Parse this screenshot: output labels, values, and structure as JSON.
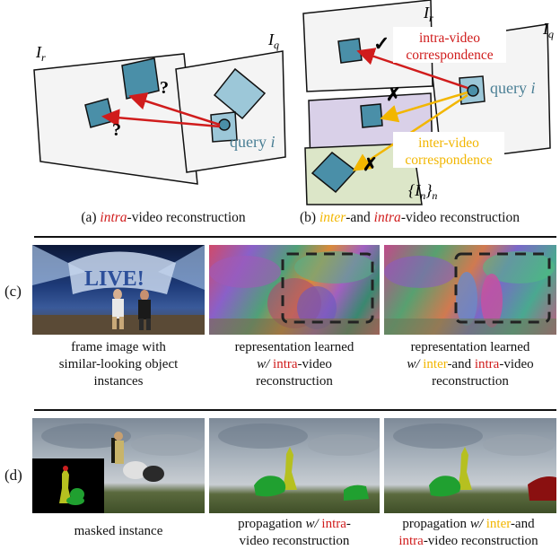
{
  "panel_a": {
    "label_ir": "I",
    "label_ir_sub": "r",
    "label_iq": "I",
    "label_iq_sub": "q",
    "question_mark_1": "?",
    "question_mark_2": "?",
    "query_text": "query ",
    "query_var": "i",
    "caption_prefix": "(a) ",
    "caption_intra": "intra",
    "caption_suffix": "-video reconstruction"
  },
  "panel_b": {
    "label_ir": "I",
    "label_ir_sub": "r",
    "label_iq": "I",
    "label_iq_sub": "q",
    "label_in": "{I",
    "label_in_sub": "n",
    "label_in_end": "}",
    "label_in_end_sub": "n",
    "check_mark": "✓",
    "cross_mark_1": "✗",
    "cross_mark_2": "✗",
    "intra_corr_line1": "intra-video",
    "intra_corr_line2": "correspondence",
    "inter_corr_line1": "inter-video",
    "inter_corr_line2": "correspondence",
    "query_text": "query ",
    "query_var": "i",
    "caption_prefix": "(b) ",
    "caption_inter": "inter",
    "caption_mid": "-and ",
    "caption_intra": "intra",
    "caption_suffix": "-video reconstruction"
  },
  "row_c": {
    "label": "(c)",
    "live_sign": "LIVE!",
    "cap1_line1": "frame image with",
    "cap1_line2": "similar-looking object",
    "cap1_line3": "instances",
    "cap2_line1": "representation learned",
    "cap2_w": "w/ ",
    "cap2_intra": "intra",
    "cap2_line2_end": "-video",
    "cap2_line3": "reconstruction",
    "cap3_line1": "representation learned",
    "cap3_w": "w/ ",
    "cap3_inter": "inter",
    "cap3_mid": "-and ",
    "cap3_intra": "intra",
    "cap3_line2_end": "-video",
    "cap3_line3": "reconstruction"
  },
  "row_d": {
    "label": "(d)",
    "cap1": "masked instance",
    "cap2_line1_a": "propagation ",
    "cap2_w": "w/ ",
    "cap2_intra": "intra",
    "cap2_line1_end": "-",
    "cap2_line2": "video reconstruction",
    "cap3_line1_a": "propagation ",
    "cap3_w": "w/ ",
    "cap3_inter": "inter",
    "cap3_line1_end": "-and",
    "cap3_intra": "intra",
    "cap3_line2_end": "-video reconstruction"
  },
  "colors": {
    "intra": "#d01c1c",
    "inter": "#f2b600",
    "patch": "#4a8fa8",
    "query_text": "#4a7f95"
  }
}
